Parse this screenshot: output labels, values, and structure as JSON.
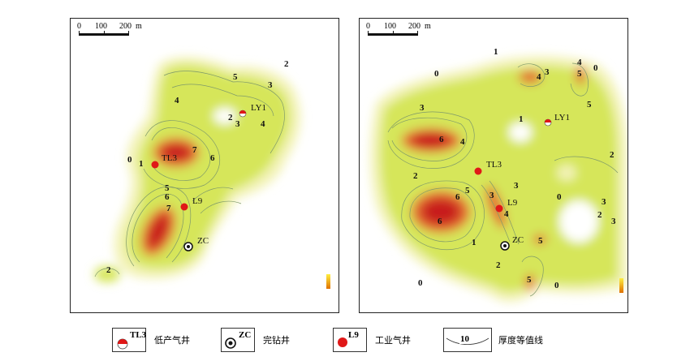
{
  "scale_bar": {
    "ticks": [
      "0",
      "100",
      "200"
    ],
    "unit": "m"
  },
  "colors": {
    "low": "#f7f7c0",
    "mid": "#d8e85a",
    "high": "#e05a30",
    "peak": "#c81e1e",
    "contour": "#7f9a6a",
    "well_red": "#e01818"
  },
  "left_map": {
    "wells": {
      "ly1": "LY1",
      "tl3": "TL3",
      "l9": "L9",
      "zc": "ZC"
    },
    "contour_labels": [
      "2",
      "5",
      "3",
      "4",
      "2",
      "3",
      "4",
      "0",
      "1",
      "7",
      "6",
      "5",
      "6",
      "7",
      "2"
    ]
  },
  "right_map": {
    "wells": {
      "ly1": "LY1",
      "tl3": "TL3",
      "l9": "L9",
      "zc": "ZC"
    },
    "contour_labels": [
      "1",
      "0",
      "4",
      "5",
      "3",
      "4",
      "0",
      "5",
      "3",
      "1",
      "6",
      "4",
      "2",
      "2",
      "3",
      "5",
      "6",
      "6",
      "3",
      "4",
      "0",
      "1",
      "5",
      "2",
      "0",
      "5",
      "0",
      "3",
      "2",
      "3"
    ]
  },
  "legend": [
    {
      "code": "TL3",
      "text": "低产气井",
      "icon": "half-red-circle-icon"
    },
    {
      "code": "ZC",
      "text": "完钻井",
      "icon": "target-circle-icon"
    },
    {
      "code": "L9",
      "text": "工业气井",
      "icon": "red-circle-icon"
    },
    {
      "code": "10",
      "text": "厚度等值线",
      "icon": "contour-line-icon"
    }
  ]
}
